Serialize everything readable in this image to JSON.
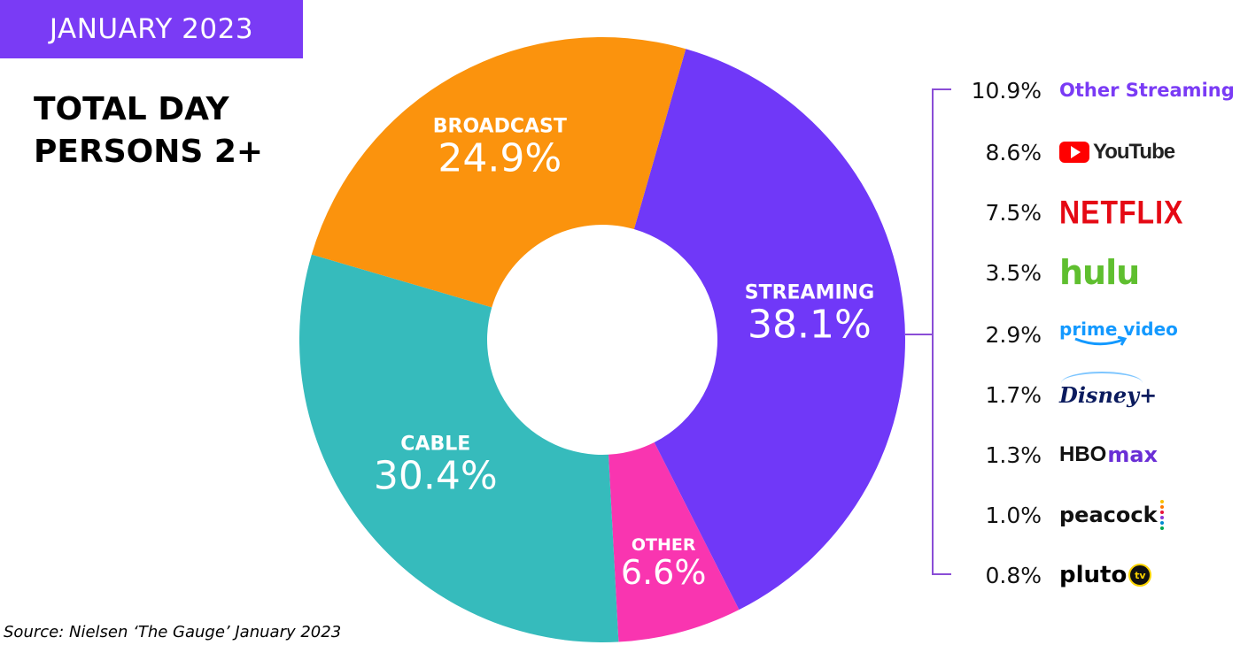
{
  "header": {
    "date_label": "JANUARY 2023"
  },
  "chart_title_lines": [
    "TOTAL DAY",
    "PERSONS 2+"
  ],
  "source": "Source: Nielsen ‘The Gauge’ January 2023",
  "chart_data": {
    "type": "pie",
    "subtype": "donut",
    "title": "TOTAL DAY PERSONS 2+",
    "slices": [
      {
        "name": "STREAMING",
        "value": 38.1,
        "label": "38.1%",
        "color": "#7038f8"
      },
      {
        "name": "OTHER",
        "value": 6.6,
        "label": "6.6%",
        "color": "#f935b0"
      },
      {
        "name": "CABLE",
        "value": 30.4,
        "label": "30.4%",
        "color": "#36bbbc"
      },
      {
        "name": "BROADCAST",
        "value": 24.9,
        "label": "24.9%",
        "color": "#fb930d"
      }
    ],
    "streaming_breakdown": [
      {
        "name": "Other Streaming",
        "value": 10.9,
        "label": "10.9%"
      },
      {
        "name": "YouTube",
        "value": 8.6,
        "label": "8.6%"
      },
      {
        "name": "NETFLIX",
        "value": 7.5,
        "label": "7.5%"
      },
      {
        "name": "hulu",
        "value": 3.5,
        "label": "3.5%"
      },
      {
        "name": "prime video",
        "value": 2.9,
        "label": "2.9%"
      },
      {
        "name": "Disney+",
        "value": 1.7,
        "label": "1.7%"
      },
      {
        "name": "HBO max",
        "value": 1.3,
        "label": "1.3%"
      },
      {
        "name": "peacock",
        "value": 1.0,
        "label": "1.0%"
      },
      {
        "name": "pluto",
        "value": 0.8,
        "label": "0.8%"
      }
    ]
  },
  "logos": {
    "youtube": "YouTube",
    "netflix": "NETFLIX",
    "hulu": "hulu",
    "prime": "prime video",
    "disney": "Disney+",
    "hbo": "HBO",
    "hbo_max": "max",
    "peacock": "peacock",
    "pluto": "pluto",
    "pluto_tv": "tv"
  },
  "colors": {
    "accent": "#7a3bf5",
    "bracket": "#8a4dd6"
  }
}
